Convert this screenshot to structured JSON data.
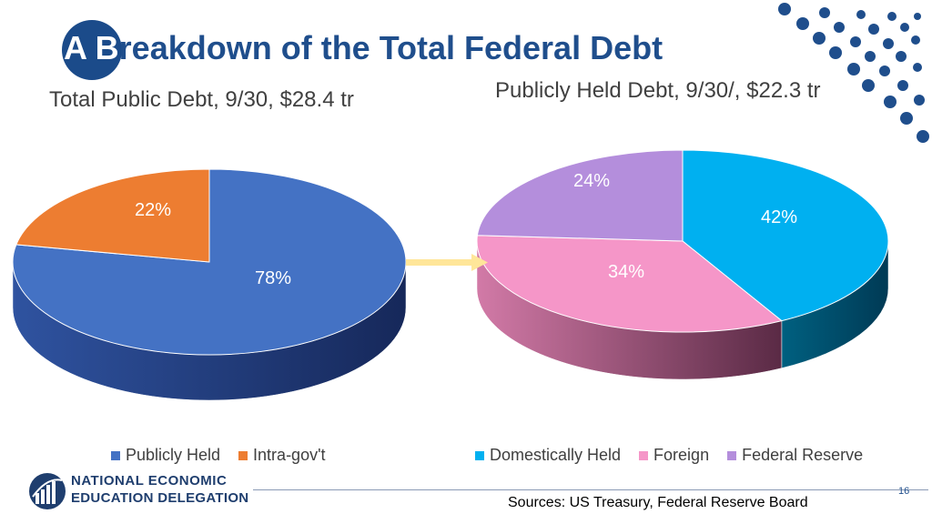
{
  "title": {
    "prefix": "A B",
    "rest": "reakdown of the Total Federal Debt"
  },
  "colors": {
    "publicly_held": "#4472c4",
    "intra_gov": "#ed7d31",
    "domestically_held": "#00b0f0",
    "foreign": "#f596c8",
    "federal_reserve": "#b48edc",
    "title": "#1f4e8c",
    "arrow": "#ffe699"
  },
  "chart_data": [
    {
      "type": "pie",
      "title": "Total Public Debt,  9/30, $28.4 tr",
      "series": [
        {
          "name": "Publicly Held",
          "value": 78,
          "label": "78%"
        },
        {
          "name": "Intra-gov't",
          "value": 22,
          "label": "22%"
        }
      ],
      "legend": "bottom"
    },
    {
      "type": "pie",
      "title": "Publicly Held Debt, 9/30/, $22.3 tr",
      "series": [
        {
          "name": "Domestically Held",
          "value": 42,
          "label": "42%"
        },
        {
          "name": "Foreign",
          "value": 34,
          "label": "34%"
        },
        {
          "name": "Federal Reserve",
          "value": 24,
          "label": "24%"
        }
      ],
      "legend": "bottom"
    }
  ],
  "footer": {
    "logo_line1": "NATIONAL ECONOMIC",
    "logo_line2": "EDUCATION DELEGATION",
    "page_number": "16",
    "sources": "Sources:  US Treasury, Federal Reserve Board"
  }
}
